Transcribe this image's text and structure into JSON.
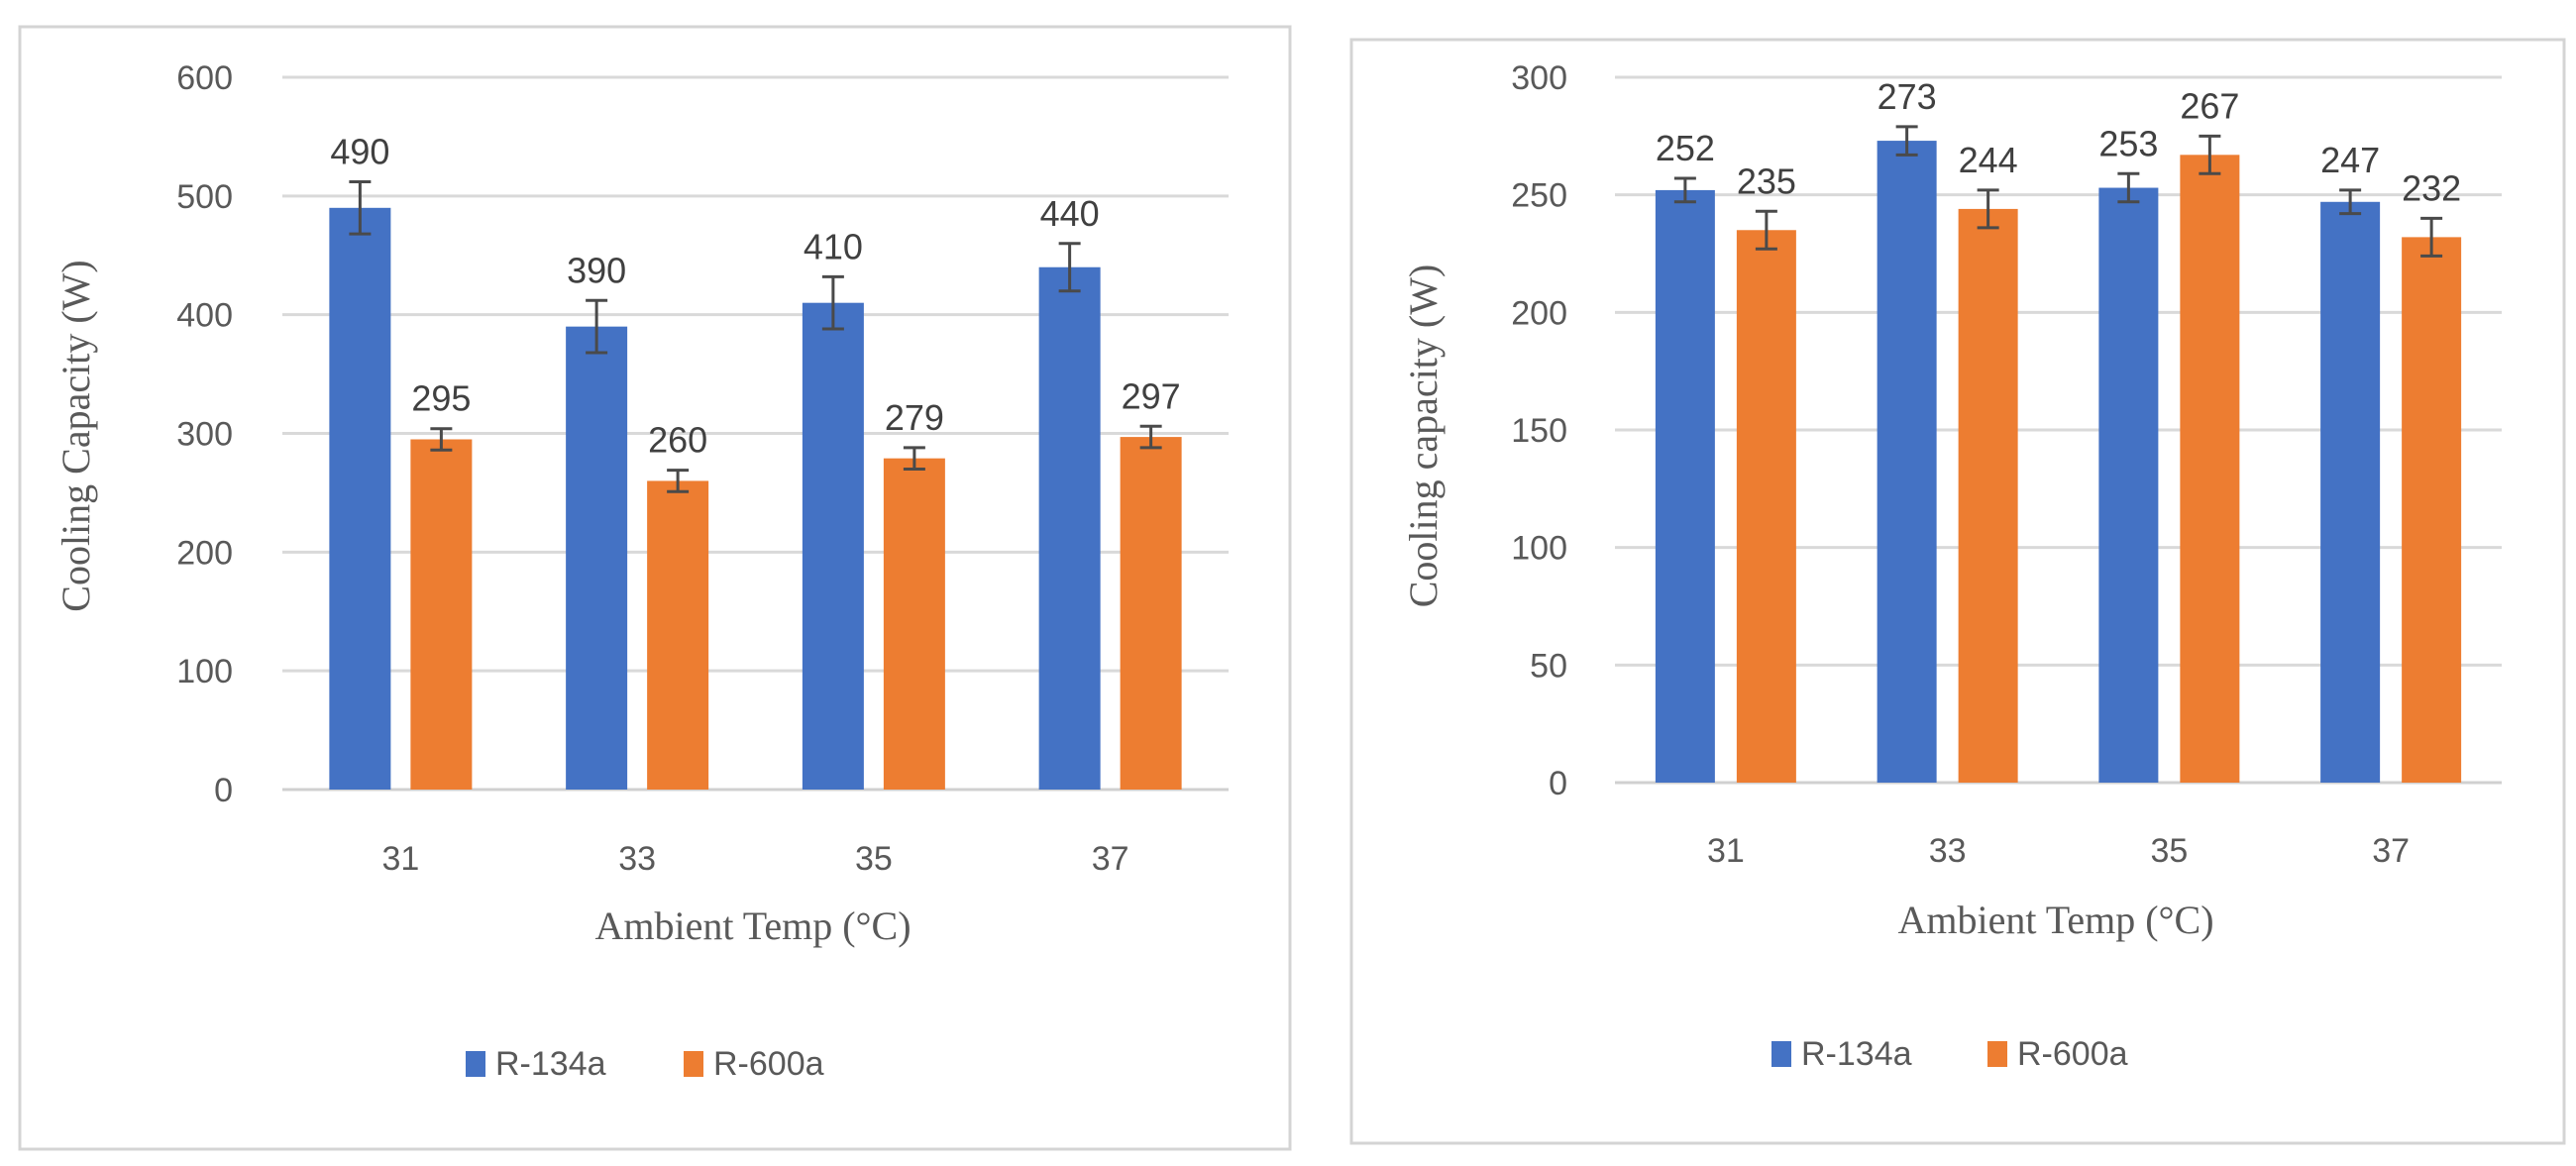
{
  "chart_data": [
    {
      "type": "bar",
      "title": "",
      "xlabel": "Ambient Temp (°C)",
      "ylabel": "Cooling Capacity  (W)",
      "categories": [
        "31",
        "33",
        "35",
        "37"
      ],
      "ylim": [
        0,
        600
      ],
      "yticks": [
        0,
        100,
        200,
        300,
        400,
        500,
        600
      ],
      "grid": true,
      "legend": "bottom-center",
      "error_bars": true,
      "series": [
        {
          "name": "R-134a",
          "color": "#4472C4",
          "values": [
            490,
            390,
            410,
            440
          ],
          "errors": [
            22,
            22,
            22,
            20
          ]
        },
        {
          "name": "R-600a",
          "color": "#ED7D31",
          "values": [
            295,
            260,
            279,
            297
          ],
          "errors": [
            9,
            9,
            9,
            9
          ]
        }
      ]
    },
    {
      "type": "bar",
      "title": "",
      "xlabel": "Ambient Temp (°C)",
      "ylabel": "Cooling capacity (W)",
      "categories": [
        "31",
        "33",
        "35",
        "37"
      ],
      "ylim": [
        0,
        300
      ],
      "yticks": [
        0,
        50,
        100,
        150,
        200,
        250,
        300
      ],
      "grid": true,
      "legend": "bottom-center",
      "error_bars": true,
      "series": [
        {
          "name": "R-134a",
          "color": "#4472C4",
          "values": [
            252,
            273,
            253,
            247
          ],
          "errors": [
            5,
            6,
            6,
            5
          ]
        },
        {
          "name": "R-600a",
          "color": "#ED7D31",
          "values": [
            235,
            244,
            267,
            232
          ],
          "errors": [
            8,
            8,
            8,
            8
          ]
        }
      ]
    }
  ]
}
